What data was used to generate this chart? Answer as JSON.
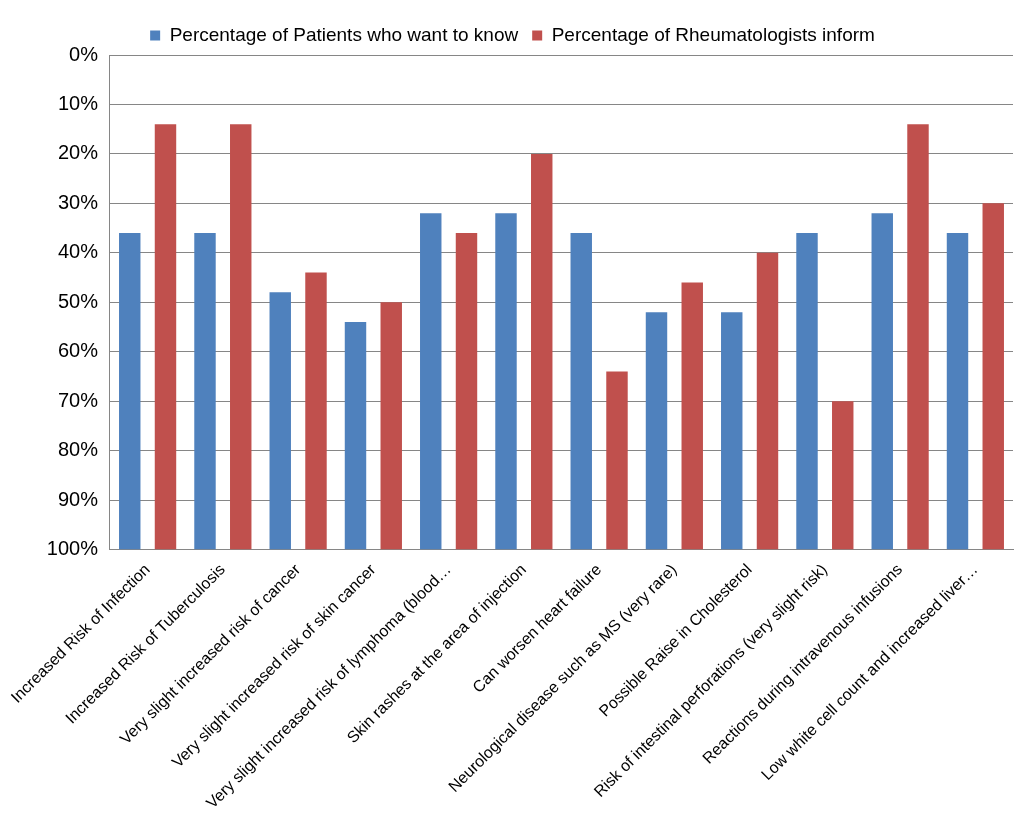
{
  "chart_data": {
    "type": "bar",
    "categories": [
      "Increased Risk of Infection",
      "Increased Risk of Tuberculosis",
      "Very slight increased risk of cancer",
      "Very slight increased risk of skin cancer",
      "Very slight increased risk of lymphoma (blood…",
      "Skin rashes at the area of injection",
      "Can worsen heart failure",
      "Neurological disease such as MS (very rare)",
      "Possible Raise in Cholesterol",
      "Risk of intestinal perforations (very slight risk)",
      "Reactions during intravenous infusions",
      "Low white cell count and increased liver…"
    ],
    "series": [
      {
        "name": "Percentage of Patients who want to know",
        "color": "#4f81bd",
        "base": [
          100,
          100,
          100,
          100,
          100,
          100,
          100,
          100,
          100,
          100,
          100,
          100
        ],
        "values": [
          -64,
          -64,
          -52,
          -46,
          -68,
          -68,
          -64,
          -48,
          -48,
          -64,
          -68,
          -64
        ]
      },
      {
        "name": "Percentage of Rheumatologists inform",
        "color": "#c0504d",
        "base": [
          100,
          100,
          100,
          100,
          100,
          100,
          100,
          100,
          100,
          100,
          100,
          100
        ],
        "values": [
          -86,
          -86,
          -56,
          -50,
          -64,
          -80,
          -36,
          -54,
          -60,
          -30,
          -86,
          -70
        ]
      }
    ],
    "ylim": [
      100,
      0
    ],
    "yticks": [
      {
        "value": 0,
        "label": "0%"
      },
      {
        "value": 10,
        "label": "10%"
      },
      {
        "value": 20,
        "label": "20%"
      },
      {
        "value": 30,
        "label": "30%"
      },
      {
        "value": 40,
        "label": "40%"
      },
      {
        "value": 50,
        "label": "50%"
      },
      {
        "value": 60,
        "label": "60%"
      },
      {
        "value": 70,
        "label": "70%"
      },
      {
        "value": 80,
        "label": "80%"
      },
      {
        "value": 90,
        "label": "90%"
      },
      {
        "value": 100,
        "label": "100%"
      }
    ],
    "grid": "y",
    "legend": "top"
  }
}
